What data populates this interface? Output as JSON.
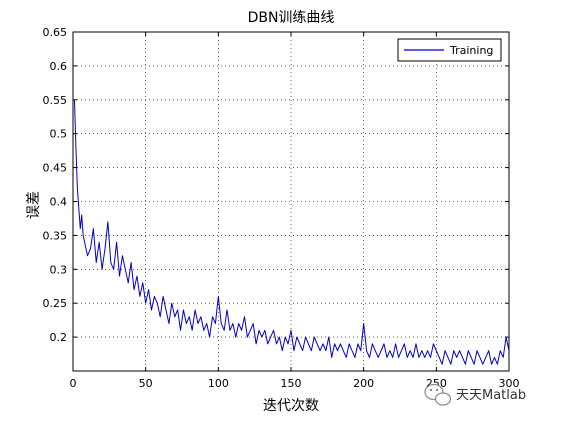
{
  "chart_data": {
    "type": "line",
    "title": "DBN训练曲线",
    "xlabel": "迭代次数",
    "ylabel": "误差",
    "xlim": [
      0,
      300
    ],
    "ylim": [
      0.15,
      0.65
    ],
    "xticks": [
      0,
      50,
      100,
      150,
      200,
      250,
      300
    ],
    "yticks": [
      0.2,
      0.25,
      0.3,
      0.35,
      0.4,
      0.45,
      0.5,
      0.55,
      0.6,
      0.65
    ],
    "ytick_labels": [
      "0.2",
      "0.25",
      "0.3",
      "0.35",
      "0.4",
      "0.45",
      "0.5",
      "0.55",
      "0.6",
      "0.65"
    ],
    "grid": true,
    "legend_position": "top-right",
    "series": [
      {
        "name": "Training",
        "color": "#0000cc",
        "x": [
          1,
          2,
          3,
          4,
          5,
          6,
          7,
          8,
          10,
          12,
          14,
          16,
          18,
          20,
          22,
          24,
          26,
          28,
          30,
          32,
          34,
          36,
          38,
          40,
          42,
          44,
          46,
          48,
          50,
          52,
          54,
          56,
          58,
          60,
          62,
          64,
          66,
          68,
          70,
          72,
          74,
          76,
          78,
          80,
          82,
          84,
          86,
          88,
          90,
          92,
          94,
          96,
          98,
          100,
          102,
          104,
          106,
          108,
          110,
          112,
          114,
          116,
          118,
          120,
          122,
          124,
          126,
          128,
          130,
          132,
          134,
          136,
          138,
          140,
          142,
          144,
          146,
          148,
          150,
          152,
          154,
          156,
          158,
          160,
          162,
          164,
          166,
          168,
          170,
          172,
          174,
          176,
          178,
          180,
          182,
          184,
          186,
          188,
          190,
          192,
          194,
          196,
          198,
          200,
          202,
          204,
          206,
          208,
          210,
          212,
          214,
          216,
          218,
          220,
          222,
          224,
          226,
          228,
          230,
          232,
          234,
          236,
          238,
          240,
          242,
          244,
          246,
          248,
          250,
          252,
          254,
          256,
          258,
          260,
          262,
          264,
          266,
          268,
          270,
          272,
          274,
          276,
          278,
          280,
          282,
          284,
          286,
          288,
          290,
          292,
          294,
          296,
          298,
          300
        ],
        "values": [
          0.55,
          0.48,
          0.42,
          0.39,
          0.36,
          0.38,
          0.35,
          0.34,
          0.32,
          0.33,
          0.36,
          0.31,
          0.34,
          0.3,
          0.33,
          0.37,
          0.31,
          0.3,
          0.34,
          0.29,
          0.32,
          0.3,
          0.28,
          0.31,
          0.27,
          0.29,
          0.26,
          0.28,
          0.25,
          0.27,
          0.24,
          0.26,
          0.25,
          0.23,
          0.26,
          0.24,
          0.22,
          0.25,
          0.23,
          0.24,
          0.21,
          0.24,
          0.22,
          0.23,
          0.21,
          0.24,
          0.22,
          0.23,
          0.21,
          0.22,
          0.2,
          0.23,
          0.22,
          0.26,
          0.22,
          0.21,
          0.24,
          0.21,
          0.22,
          0.2,
          0.22,
          0.21,
          0.23,
          0.2,
          0.21,
          0.22,
          0.19,
          0.21,
          0.2,
          0.21,
          0.19,
          0.2,
          0.21,
          0.19,
          0.2,
          0.18,
          0.2,
          0.19,
          0.21,
          0.18,
          0.2,
          0.19,
          0.18,
          0.2,
          0.19,
          0.18,
          0.2,
          0.19,
          0.18,
          0.19,
          0.18,
          0.2,
          0.17,
          0.19,
          0.18,
          0.19,
          0.18,
          0.17,
          0.19,
          0.18,
          0.17,
          0.19,
          0.18,
          0.22,
          0.18,
          0.17,
          0.19,
          0.18,
          0.17,
          0.18,
          0.19,
          0.17,
          0.18,
          0.17,
          0.19,
          0.17,
          0.18,
          0.19,
          0.17,
          0.18,
          0.17,
          0.19,
          0.17,
          0.18,
          0.17,
          0.18,
          0.17,
          0.19,
          0.18,
          0.17,
          0.16,
          0.18,
          0.17,
          0.16,
          0.18,
          0.17,
          0.18,
          0.17,
          0.16,
          0.18,
          0.17,
          0.16,
          0.18,
          0.17,
          0.16,
          0.17,
          0.18,
          0.16,
          0.17,
          0.16,
          0.18,
          0.17,
          0.2,
          0.18
        ]
      }
    ]
  },
  "watermark": {
    "text": "天天Matlab",
    "icon": "wechat-icon"
  }
}
